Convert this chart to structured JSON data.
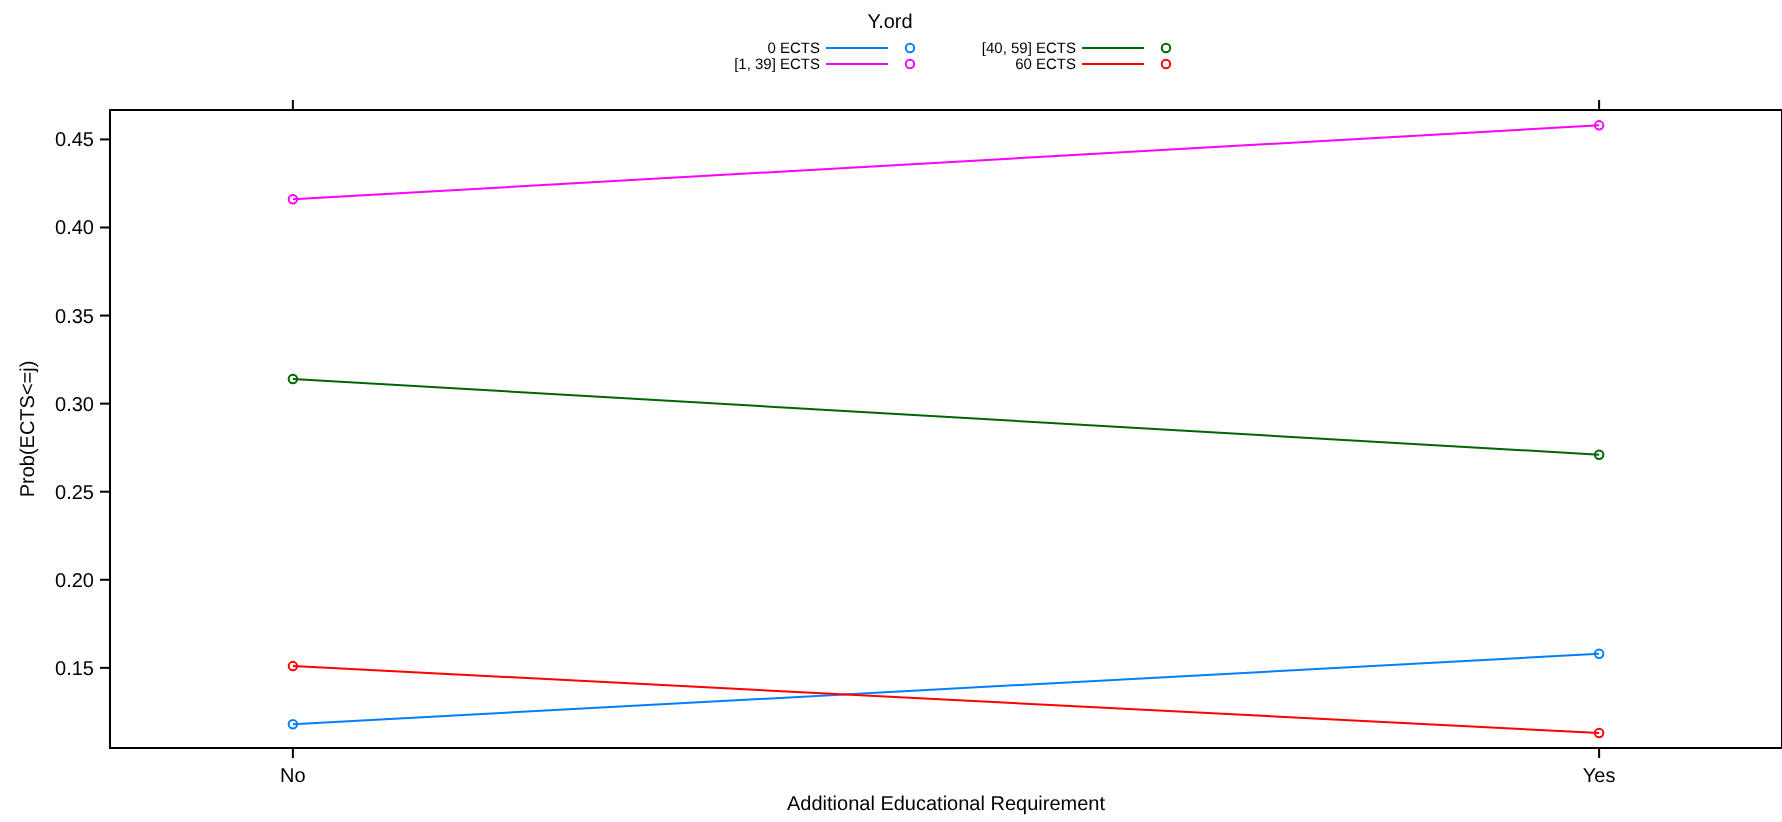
{
  "chart_data": {
    "type": "line",
    "xlabel": "Additional Educational Requirement",
    "ylabel": "Prob(ECTS<=j)",
    "legend_title": "Y.ord",
    "legend": "top",
    "marker": "circle",
    "categories": [
      "No",
      "Yes"
    ],
    "ylim": [
      0.1045,
      0.4667
    ],
    "yticks": [
      0.15,
      {
        "value": 0.2,
        "label": "0.20"
      },
      {
        "value": 0.25,
        "label": "0.25"
      },
      {
        "value": 0.3,
        "label": "0.30"
      },
      0.35,
      {
        "value": 0.4,
        "label": "0.40"
      },
      0.45
    ],
    "series": [
      {
        "name": "0 ECTS",
        "color": "#0080ff",
        "values": [
          0.118,
          0.158
        ]
      },
      {
        "name": "[1, 39] ECTS",
        "color": "#ff00ff",
        "values": [
          0.416,
          0.458
        ]
      },
      {
        "name": "[40, 59] ECTS",
        "color": "#006400",
        "values": [
          0.314,
          0.271
        ]
      },
      {
        "name": "60 ECTS",
        "color": "#ff0000",
        "values": [
          0.151,
          0.113
        ]
      }
    ]
  }
}
